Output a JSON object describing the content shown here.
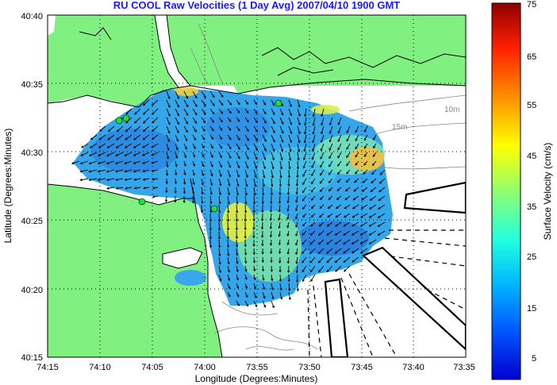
{
  "title": "RU COOL Raw Velocities (1 Day Avg) 2007/04/10 1900 GMT",
  "map": {
    "xlabel": "Longitude (Degrees:Minutes)",
    "ylabel": "Latitude (Degrees:Minutes)",
    "x_ticks": [
      "74:15",
      "74:10",
      "74:05",
      "74:00",
      "73:55",
      "73:50",
      "73:45",
      "73:40",
      "73:35"
    ],
    "y_ticks": [
      "40:40",
      "40:35",
      "40:30",
      "40:25",
      "40:20",
      "40:15"
    ],
    "depth_labels": [
      "10m",
      "15m"
    ],
    "colors": {
      "land": "#80f080",
      "water": "#ffffff",
      "grid": "#000000"
    }
  },
  "colorbar": {
    "label": "Surface Velocity (cm/s)",
    "ticks": [
      "75",
      "65",
      "55",
      "45",
      "35",
      "25",
      "15",
      "5"
    ],
    "range": [
      0,
      75
    ]
  }
}
